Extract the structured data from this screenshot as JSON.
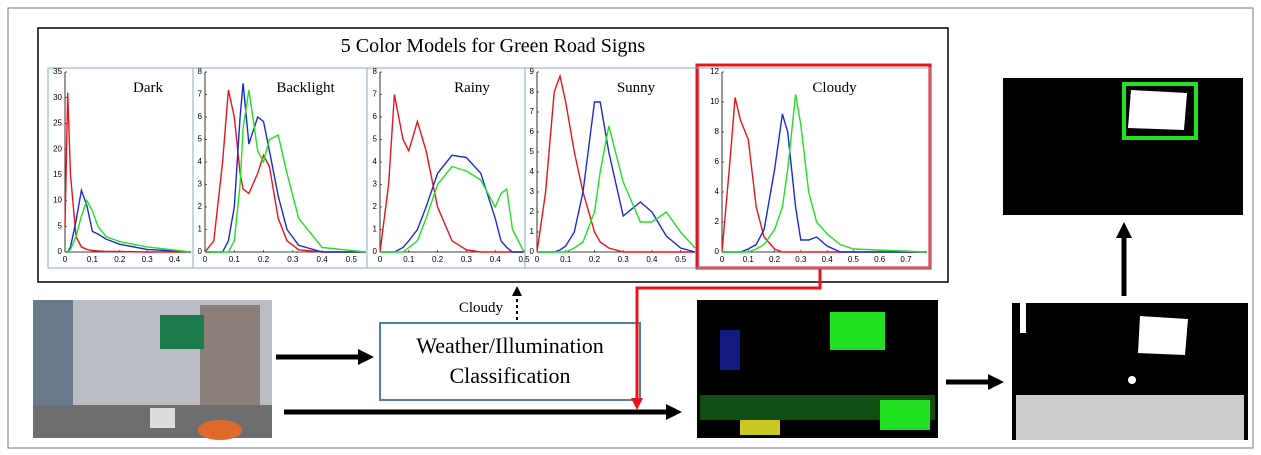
{
  "title": "5 Color Models for Green Road Signs",
  "panels": [
    {
      "label": "Dark",
      "xlim": [
        0,
        0.46
      ],
      "ylim": [
        0,
        35
      ],
      "xticks": [
        0,
        0.1,
        0.2,
        0.3,
        0.4
      ],
      "yticks": [
        0,
        5,
        10,
        15,
        20,
        25,
        30,
        35
      ],
      "x": [
        0,
        0.01,
        0.02,
        0.04,
        0.06,
        0.08,
        0.1,
        0.12,
        0.15,
        0.2,
        0.3,
        0.46
      ],
      "series": [
        {
          "color": "#e8141c",
          "values": [
            5,
            31,
            15,
            3,
            1,
            0.5,
            0.3,
            0.2,
            0.1,
            0.1,
            0,
            0
          ]
        },
        {
          "color": "#1a2bd6",
          "values": [
            0,
            0,
            1,
            6,
            12,
            9,
            4,
            3.5,
            2.5,
            1.5,
            0.5,
            0
          ]
        },
        {
          "color": "#22e022",
          "values": [
            0,
            0,
            0.5,
            3,
            7,
            10,
            8,
            5,
            3,
            2,
            1,
            0
          ]
        }
      ]
    },
    {
      "label": "Backlight",
      "xlim": [
        0,
        0.55
      ],
      "ylim": [
        0,
        8
      ],
      "xticks": [
        0,
        0.1,
        0.2,
        0.3,
        0.4,
        0.5
      ],
      "yticks": [
        0,
        1,
        2,
        3,
        4,
        5,
        6,
        7,
        8
      ],
      "x": [
        0,
        0.03,
        0.06,
        0.08,
        0.1,
        0.12,
        0.13,
        0.15,
        0.18,
        0.2,
        0.22,
        0.25,
        0.28,
        0.32,
        0.4,
        0.55
      ],
      "series": [
        {
          "color": "#e8141c",
          "values": [
            0,
            0.5,
            4,
            7.2,
            6,
            3.5,
            2.8,
            2.6,
            3.5,
            4.3,
            3.8,
            1.5,
            0.5,
            0.1,
            0,
            0
          ]
        },
        {
          "color": "#1a2bd6",
          "values": [
            0,
            0,
            0,
            0.5,
            2,
            6,
            7.5,
            4.8,
            6,
            5.8,
            4.5,
            2.5,
            1,
            0.3,
            0,
            0
          ]
        },
        {
          "color": "#22e022",
          "values": [
            0,
            0,
            0,
            0,
            0.5,
            3,
            5.5,
            7.2,
            4.5,
            4,
            5,
            5.2,
            3.5,
            1.5,
            0.2,
            0
          ]
        }
      ]
    },
    {
      "label": "Rainy",
      "xlim": [
        0,
        0.5
      ],
      "ylim": [
        0,
        8
      ],
      "xticks": [
        0,
        0.1,
        0.2,
        0.3,
        0.4,
        0.5
      ],
      "yticks": [
        0,
        1,
        2,
        3,
        4,
        5,
        6,
        7,
        8
      ],
      "x": [
        0,
        0.03,
        0.05,
        0.08,
        0.1,
        0.13,
        0.16,
        0.2,
        0.25,
        0.3,
        0.35,
        0.4,
        0.42,
        0.44,
        0.46,
        0.5
      ],
      "series": [
        {
          "color": "#e8141c",
          "values": [
            0,
            3,
            7,
            5,
            4.5,
            5.8,
            4.5,
            2,
            0.5,
            0.1,
            0,
            0,
            0,
            0,
            0,
            0
          ]
        },
        {
          "color": "#1a2bd6",
          "values": [
            0,
            0,
            0,
            0.2,
            0.5,
            1,
            2,
            3.5,
            4.3,
            4.2,
            3.5,
            1.5,
            0.5,
            0.2,
            0,
            0
          ]
        },
        {
          "color": "#22e022",
          "values": [
            0,
            0,
            0,
            0,
            0.2,
            0.5,
            1.5,
            3,
            3.8,
            3.6,
            3.2,
            2,
            2.6,
            2.8,
            1,
            0
          ]
        }
      ]
    },
    {
      "label": "Sunny",
      "xlim": [
        0,
        0.55
      ],
      "ylim": [
        0,
        9
      ],
      "xticks": [
        0,
        0.1,
        0.2,
        0.3,
        0.4,
        0.5
      ],
      "yticks": [
        0,
        1,
        2,
        3,
        4,
        5,
        6,
        7,
        8,
        9
      ],
      "x": [
        0,
        0.03,
        0.06,
        0.08,
        0.1,
        0.13,
        0.16,
        0.2,
        0.22,
        0.25,
        0.3,
        0.36,
        0.4,
        0.45,
        0.5,
        0.55
      ],
      "series": [
        {
          "color": "#e8141c",
          "values": [
            0,
            3,
            8,
            8.8,
            7.5,
            5,
            3,
            1,
            0.5,
            0.2,
            0,
            0,
            0,
            0,
            0,
            0
          ]
        },
        {
          "color": "#1a2bd6",
          "values": [
            0,
            0,
            0,
            0.1,
            0.3,
            1,
            3,
            7.5,
            7.5,
            5,
            1.8,
            2.5,
            2,
            0.8,
            0.2,
            0
          ]
        },
        {
          "color": "#22e022",
          "values": [
            0,
            0,
            0,
            0,
            0,
            0.2,
            0.5,
            2,
            4,
            6.3,
            3.5,
            1.5,
            1.5,
            2,
            1,
            0.2
          ]
        }
      ]
    },
    {
      "label": "Cloudy",
      "xlim": [
        0,
        0.78
      ],
      "ylim": [
        0,
        12
      ],
      "xticks": [
        0,
        0.1,
        0.2,
        0.3,
        0.4,
        0.5,
        0.6,
        0.7
      ],
      "yticks": [
        0,
        2,
        4,
        6,
        8,
        10,
        12
      ],
      "x": [
        0,
        0.03,
        0.05,
        0.07,
        0.1,
        0.13,
        0.16,
        0.2,
        0.23,
        0.25,
        0.28,
        0.3,
        0.33,
        0.36,
        0.4,
        0.45,
        0.5,
        0.78
      ],
      "series": [
        {
          "color": "#e8141c",
          "values": [
            0,
            6,
            10.3,
            8.8,
            7.5,
            3,
            1,
            0.2,
            0,
            0,
            0,
            0,
            0,
            0,
            0,
            0,
            0,
            0
          ]
        },
        {
          "color": "#1a2bd6",
          "values": [
            0,
            0,
            0,
            0,
            0.2,
            0.5,
            1.5,
            5.5,
            9.2,
            8,
            3,
            0.8,
            0.8,
            1,
            0.4,
            0,
            0,
            0
          ]
        },
        {
          "color": "#22e022",
          "values": [
            0,
            0,
            0,
            0,
            0,
            0.2,
            0.5,
            1.5,
            3,
            5.5,
            10.5,
            8.5,
            4,
            2,
            1.2,
            0.5,
            0.2,
            0
          ]
        }
      ]
    }
  ],
  "arrow_label": "Cloudy",
  "classifier": [
    "Weather/Illumination",
    "Classification"
  ]
}
